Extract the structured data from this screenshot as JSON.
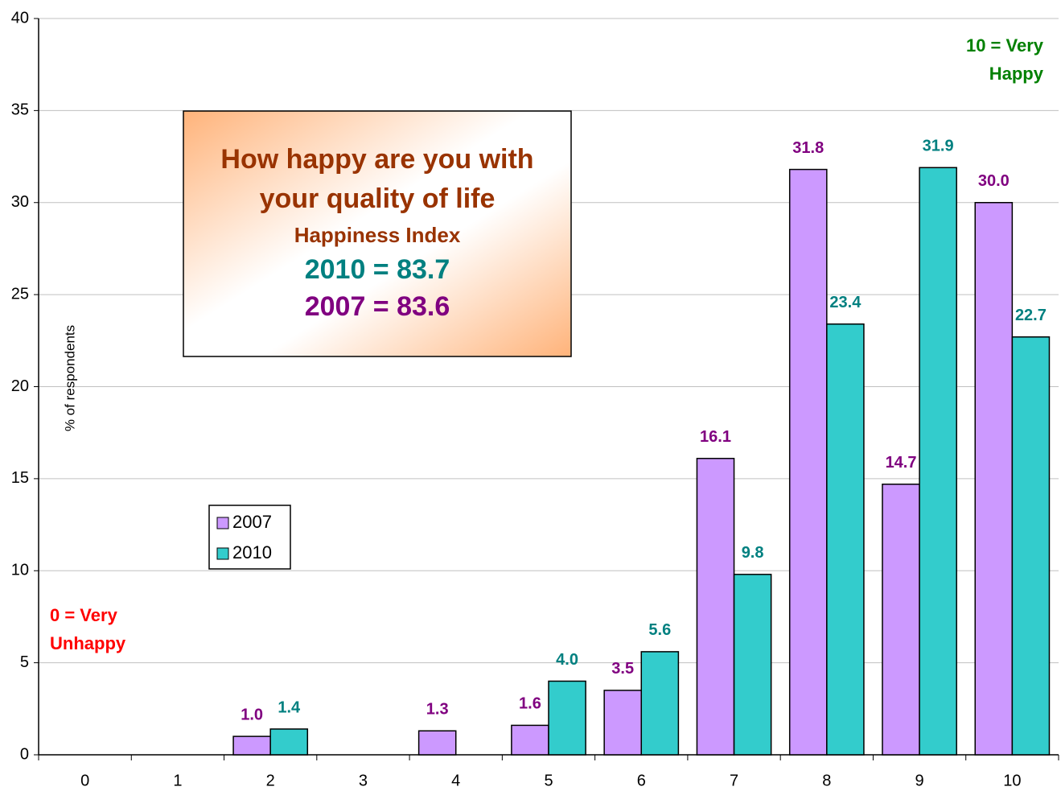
{
  "chart_data": {
    "type": "bar",
    "categories": [
      "0",
      "1",
      "2",
      "3",
      "4",
      "5",
      "6",
      "7",
      "8",
      "9",
      "10"
    ],
    "series": [
      {
        "name": "2007",
        "color": "#cc99ff",
        "label_color": "#800080",
        "values": [
          null,
          null,
          1.0,
          null,
          1.3,
          1.6,
          3.5,
          16.1,
          31.8,
          14.7,
          30.0
        ],
        "value_labels": [
          null,
          null,
          "1.0",
          null,
          "1.3",
          "1.6",
          "3.5",
          "16.1",
          "31.8",
          "14.7",
          "30.0"
        ]
      },
      {
        "name": "2010",
        "color": "#33cccc",
        "label_color": "#008080",
        "values": [
          null,
          null,
          1.4,
          null,
          null,
          4.0,
          5.6,
          9.8,
          23.4,
          31.9,
          22.7
        ],
        "value_labels": [
          null,
          null,
          "1.4",
          null,
          null,
          "4.0",
          "5.6",
          "9.8",
          "23.4",
          "31.9",
          "22.7"
        ]
      }
    ],
    "ylabel": "% of respondents",
    "ylim": [
      0,
      40
    ],
    "yticks": [
      0,
      5,
      10,
      15,
      20,
      25,
      30,
      35,
      40
    ],
    "grid": true,
    "text_box": [
      "How happy are you with",
      "your quality of life",
      "Happiness Index",
      "2010 = 83.7",
      "2007 = 83.6"
    ],
    "annotations": [
      {
        "lines": [
          "0 = Very",
          "Unhappy"
        ],
        "color": "#ff0000"
      },
      {
        "lines": [
          "10 = Very",
          "Happy"
        ],
        "color": "#008000"
      }
    ]
  }
}
